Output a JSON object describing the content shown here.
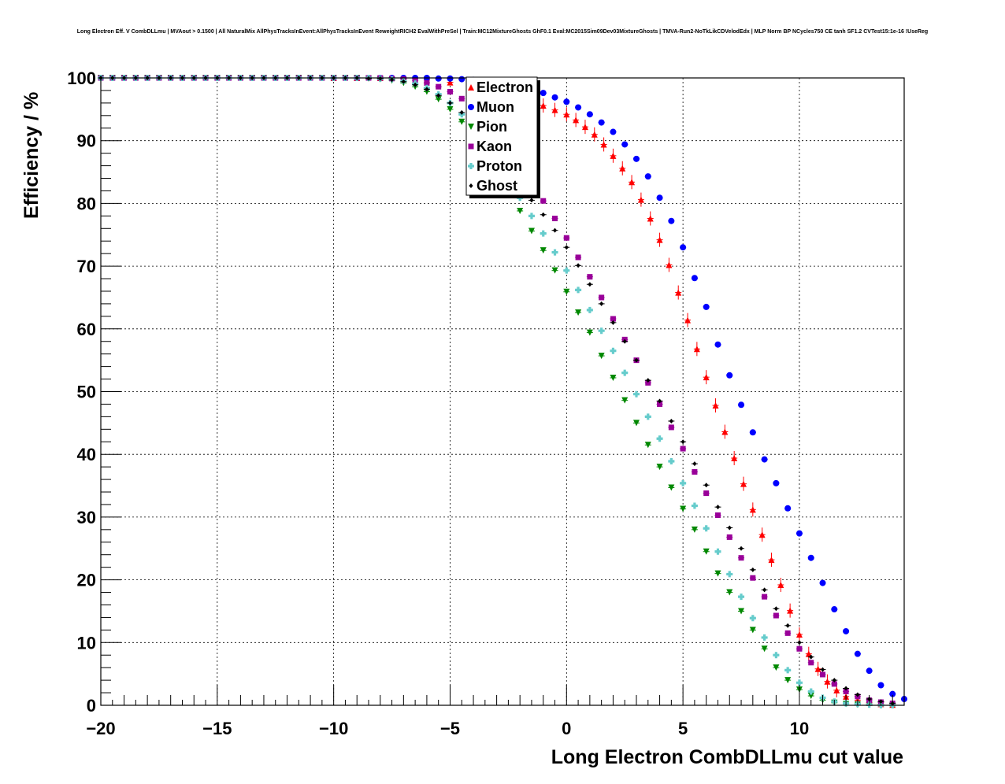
{
  "chart_data": {
    "type": "scatter",
    "title": "Long Electron Eff. V CombDLLmu | MVAout > 0.1500 | All NaturalMix AllPhysTracksInEvent:AllPhysTracksInEvent ReweightRICH2 EvalWithPreSel | Train:MC12MixtureGhosts GhF0.1 Eval:MC2015Sim09Dev03MixtureGhosts | TMVA-Run2-NoTkLikCDVelodEdx | MLP Norm BP NCycles750 CE tanh SF1.2 CVTest15:1e-16 !UseReg",
    "xlabel": "Long Electron CombDLLmu cut value",
    "ylabel": "Efficiency / %",
    "xlim": [
      -20,
      14.5
    ],
    "ylim": [
      0,
      100
    ],
    "xticks": [
      -20,
      -15,
      -10,
      -5,
      0,
      5,
      10
    ],
    "xtick_labels": [
      "−20",
      "−15",
      "−10",
      "−5",
      "0",
      "5",
      "10"
    ],
    "yticks": [
      0,
      10,
      20,
      30,
      40,
      50,
      60,
      70,
      80,
      90,
      100
    ],
    "ytick_labels": [
      "0",
      "10",
      "20",
      "30",
      "40",
      "50",
      "60",
      "70",
      "80",
      "90",
      "100"
    ],
    "grid": true,
    "legend_position": "top-center",
    "series": [
      {
        "name": "Electron",
        "color": "#ff0000",
        "marker": "triangle-up",
        "x": [
          -10,
          -9,
          -8,
          -7,
          -6,
          -5,
          -4,
          -3,
          -2.5,
          -2,
          -1.5,
          -1,
          -0.5,
          0,
          0.4,
          0.8,
          1.2,
          1.6,
          2,
          2.4,
          2.8,
          3.2,
          3.6,
          4,
          4.4,
          4.8,
          5.2,
          5.6,
          6,
          6.4,
          6.8,
          7.2,
          7.6,
          8,
          8.4,
          8.8,
          9.2,
          9.6,
          10,
          10.4,
          10.8,
          11.2,
          11.6,
          12,
          12.5,
          13,
          13.5,
          14
        ],
        "y": [
          100,
          100,
          100,
          99.9,
          99.7,
          99.3,
          98.7,
          97.8,
          97.3,
          96.8,
          96.1,
          95.6,
          94.9,
          94.2,
          93.3,
          92.2,
          91,
          89.4,
          87.6,
          85.6,
          83.4,
          80.6,
          77.6,
          74.2,
          70.2,
          65.8,
          61.4,
          56.8,
          52.3,
          47.8,
          43.6,
          39.4,
          35.3,
          31.2,
          27.2,
          23.2,
          19.2,
          15.1,
          11.3,
          8.2,
          5.8,
          3.8,
          2.4,
          1.4,
          0.8,
          0.4,
          0.2,
          0.1
        ]
      },
      {
        "name": "Muon",
        "color": "#0000ff",
        "marker": "circle",
        "x": [
          -20,
          -19.5,
          -19,
          -18.5,
          -18,
          -17.5,
          -17,
          -16.5,
          -16,
          -15.5,
          -15,
          -14.5,
          -14,
          -13.5,
          -13,
          -12.5,
          -12,
          -11.5,
          -11,
          -10.5,
          -10,
          -9.5,
          -9,
          -8.5,
          -8,
          -7.5,
          -7,
          -6.5,
          -6,
          -5.5,
          -5,
          -4.5,
          -4,
          -3.5,
          -3,
          -2.5,
          -2,
          -1.5,
          -1,
          -0.5,
          0,
          0.5,
          1,
          1.5,
          2,
          2.5,
          3,
          3.5,
          4,
          4.5,
          5,
          5.5,
          6,
          6.5,
          7,
          7.5,
          8,
          8.5,
          9,
          9.5,
          10,
          10.5,
          11,
          11.5,
          12,
          12.5,
          13,
          13.5,
          14,
          14.5
        ],
        "y": [
          100,
          100,
          100,
          100,
          100,
          100,
          100,
          100,
          100,
          100,
          100,
          100,
          100,
          100,
          100,
          100,
          100,
          100,
          100,
          100,
          100,
          100,
          100,
          100,
          100,
          100,
          100,
          100,
          100,
          99.9,
          99.9,
          99.8,
          99.7,
          99.5,
          99.3,
          99,
          98.6,
          98.2,
          97.6,
          96.9,
          96.2,
          95.3,
          94.2,
          92.9,
          91.4,
          89.4,
          87.1,
          84.3,
          80.9,
          77.2,
          73,
          68.1,
          63.5,
          57.5,
          52.6,
          47.9,
          43.5,
          39.2,
          35.4,
          31.4,
          27.4,
          23.5,
          19.5,
          15.3,
          11.8,
          8.2,
          5.5,
          3.2,
          1.8,
          1.0
        ]
      },
      {
        "name": "Pion",
        "color": "#008800",
        "marker": "triangle-down",
        "x": [
          -20,
          -19.5,
          -19,
          -18.5,
          -18,
          -17.5,
          -17,
          -16.5,
          -16,
          -15.5,
          -15,
          -14.5,
          -14,
          -13.5,
          -13,
          -12.5,
          -12,
          -11.5,
          -11,
          -10.5,
          -10,
          -9.5,
          -9,
          -8.5,
          -8,
          -7.5,
          -7,
          -6.5,
          -6,
          -5.5,
          -5,
          -4.5,
          -4,
          -3.5,
          -3,
          -2.5,
          -2,
          -1.5,
          -1,
          -0.5,
          0,
          0.5,
          1,
          1.5,
          2,
          2.5,
          3,
          3.5,
          4,
          4.5,
          5,
          5.5,
          6,
          6.5,
          7,
          7.5,
          8,
          8.5,
          9,
          9.5,
          10,
          10.5,
          11,
          11.5,
          12,
          12.5,
          13,
          13.5,
          14
        ],
        "y": [
          100,
          100,
          100,
          100,
          100,
          100,
          100,
          100,
          100,
          100,
          100,
          100,
          100,
          100,
          100,
          100,
          100,
          100,
          100,
          100,
          100,
          100,
          100,
          99.9,
          99.8,
          99.6,
          99.2,
          98.6,
          97.8,
          96.6,
          95,
          93,
          90.6,
          87.6,
          84.4,
          81.6,
          78.8,
          75.6,
          72.5,
          69.3,
          65.9,
          62.6,
          59.4,
          55.7,
          52.2,
          48.6,
          45,
          41.5,
          38,
          34.7,
          31.3,
          28,
          24.5,
          21,
          18,
          15,
          12,
          9,
          6,
          4,
          2.5,
          1.5,
          0.8,
          0.4,
          0.2,
          0.1,
          0.1,
          0,
          0
        ]
      },
      {
        "name": "Kaon",
        "color": "#990099",
        "marker": "square",
        "x": [
          -20,
          -19.5,
          -19,
          -18.5,
          -18,
          -17.5,
          -17,
          -16.5,
          -16,
          -15.5,
          -15,
          -14.5,
          -14,
          -13.5,
          -13,
          -12.5,
          -12,
          -11.5,
          -11,
          -10.5,
          -10,
          -9.5,
          -9,
          -8.5,
          -8,
          -7.5,
          -7,
          -6.5,
          -6,
          -5.5,
          -5,
          -4.5,
          -4,
          -3.5,
          -3,
          -2.5,
          -2,
          -1.5,
          -1,
          -0.5,
          0,
          0.5,
          1,
          1.5,
          2,
          2.5,
          3,
          3.5,
          4,
          4.5,
          5,
          5.5,
          6,
          6.5,
          7,
          7.5,
          8,
          8.5,
          9,
          9.5,
          10,
          10.5,
          11,
          11.5,
          12,
          12.5,
          13,
          13.5,
          14
        ],
        "y": [
          100,
          100,
          100,
          100,
          100,
          100,
          100,
          100,
          100,
          100,
          100,
          100,
          100,
          100,
          100,
          100,
          100,
          100,
          100,
          100,
          100,
          100,
          100,
          100,
          100,
          99.9,
          99.8,
          99.6,
          99.2,
          98.6,
          97.8,
          96.7,
          95.2,
          93.2,
          90.8,
          88.2,
          85.3,
          82.8,
          80.4,
          77.6,
          74.5,
          71.4,
          68.3,
          65,
          61.6,
          58.3,
          55,
          51.4,
          48,
          44.3,
          40.9,
          37.2,
          33.8,
          30.3,
          26.8,
          23.5,
          20.3,
          17.3,
          14.3,
          11.5,
          9,
          6.8,
          4.9,
          3.4,
          2.2,
          1.4,
          0.8,
          0.5,
          0.3
        ]
      },
      {
        "name": "Proton",
        "color": "#66cccc",
        "marker": "cross",
        "x": [
          -20,
          -19.5,
          -19,
          -18.5,
          -18,
          -17.5,
          -17,
          -16.5,
          -16,
          -15.5,
          -15,
          -14.5,
          -14,
          -13.5,
          -13,
          -12.5,
          -12,
          -11.5,
          -11,
          -10.5,
          -10,
          -9.5,
          -9,
          -8.5,
          -8,
          -7.5,
          -7,
          -6.5,
          -6,
          -5.5,
          -5,
          -4.5,
          -4,
          -3.5,
          -3,
          -2.5,
          -2,
          -1.5,
          -1,
          -0.5,
          0,
          0.5,
          1,
          1.5,
          2,
          2.5,
          3,
          3.5,
          4,
          4.5,
          5,
          5.5,
          6,
          6.5,
          7,
          7.5,
          8,
          8.5,
          9,
          9.5,
          10,
          10.5,
          11,
          11.5,
          12,
          12.5,
          13,
          13.5,
          14
        ],
        "y": [
          100,
          100,
          100,
          100,
          100,
          100,
          100,
          100,
          100,
          100,
          100,
          100,
          100,
          100,
          100,
          100,
          100,
          100,
          100,
          100,
          100,
          100,
          100,
          100,
          99.9,
          99.8,
          99.5,
          99.1,
          98.4,
          97.4,
          96,
          94.2,
          91.9,
          89.3,
          86.5,
          83.6,
          80.9,
          78,
          75.2,
          72.2,
          69.3,
          66.2,
          63,
          59.7,
          56.5,
          53,
          49.6,
          46,
          42.5,
          38.9,
          35.4,
          31.8,
          28.2,
          24.5,
          20.9,
          17.3,
          13.9,
          10.8,
          8,
          5.6,
          3.6,
          2.2,
          1.2,
          0.6,
          0.3,
          0.2,
          0.1,
          0,
          0
        ]
      },
      {
        "name": "Ghost",
        "color": "#000000",
        "marker": "diamond",
        "x": [
          -20,
          -19.5,
          -19,
          -18.5,
          -18,
          -17.5,
          -17,
          -16.5,
          -16,
          -15.5,
          -15,
          -14.5,
          -14,
          -13.5,
          -13,
          -12.5,
          -12,
          -11.5,
          -11,
          -10.5,
          -10,
          -9.5,
          -9,
          -8.5,
          -8,
          -7.5,
          -7,
          -6.5,
          -6,
          -5.5,
          -5,
          -4.5,
          -4,
          -3.5,
          -3,
          -2.5,
          -2,
          -1.5,
          -1,
          -0.5,
          0,
          0.5,
          1,
          1.5,
          2,
          2.5,
          3,
          3.5,
          4,
          4.5,
          5,
          5.5,
          6,
          6.5,
          7,
          7.5,
          8,
          8.5,
          9,
          9.5,
          10,
          10.5,
          11,
          11.5,
          12,
          12.5,
          13,
          13.5,
          14
        ],
        "y": [
          100,
          100,
          100,
          100,
          100,
          100,
          100,
          100,
          100,
          100,
          100,
          100,
          100,
          100,
          100,
          100,
          100,
          100,
          100,
          100,
          100,
          100,
          100,
          99.9,
          99.9,
          99.7,
          99.4,
          98.9,
          98.2,
          97.2,
          96,
          94.5,
          92.7,
          90.5,
          88,
          85.5,
          82.9,
          80.5,
          78.2,
          75.7,
          73,
          70.1,
          67.1,
          64,
          61,
          58,
          55,
          51.8,
          48.5,
          45.3,
          42,
          38.5,
          35.1,
          31.6,
          28.3,
          25,
          21.6,
          18.4,
          15.4,
          12.7,
          10,
          7.7,
          5.7,
          4,
          2.7,
          1.7,
          1,
          0.6,
          0.3
        ]
      }
    ]
  }
}
